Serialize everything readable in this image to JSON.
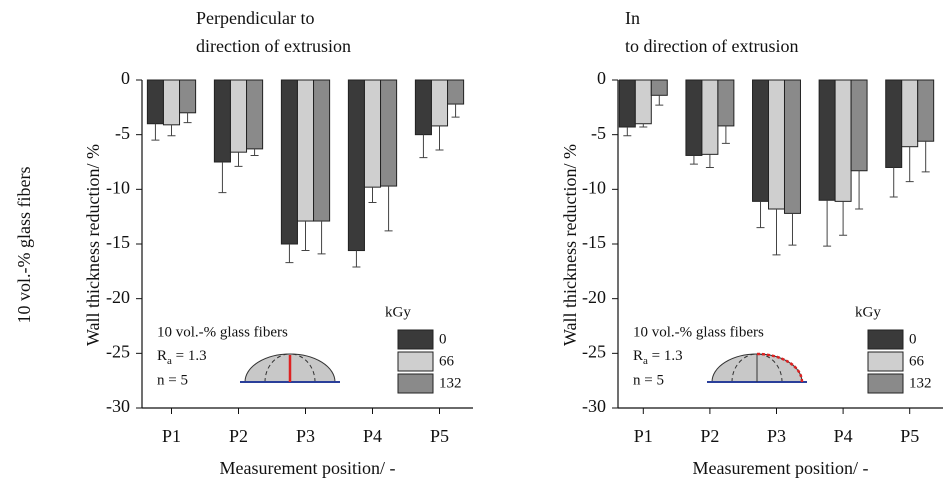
{
  "side_label": "10 vol.-% glass fibers",
  "chart_data": [
    {
      "type": "bar",
      "title": [
        "Perpendicular to",
        "direction of extrusion"
      ],
      "ylabel": "Wall thickness reduction/ %",
      "xlabel": "Measurement position/ -",
      "categories": [
        "P1",
        "P2",
        "P3",
        "P4",
        "P5"
      ],
      "legend_title": "kGy",
      "series": [
        {
          "name": "0",
          "color": "#3a3a3a",
          "values": [
            -4.0,
            -7.5,
            -15.0,
            -15.6,
            -5.0
          ],
          "errors": [
            1.5,
            2.8,
            1.7,
            1.5,
            2.1
          ]
        },
        {
          "name": "66",
          "color": "#cfcfcf",
          "values": [
            -4.1,
            -6.6,
            -12.9,
            -9.8,
            -4.2
          ],
          "errors": [
            1.0,
            1.3,
            2.7,
            1.4,
            2.2
          ]
        },
        {
          "name": "132",
          "color": "#8a8a8a",
          "values": [
            -3.0,
            -6.3,
            -12.9,
            -9.7,
            -2.2
          ],
          "errors": [
            0.9,
            0.6,
            3.0,
            4.1,
            1.2
          ]
        }
      ],
      "annotations": [
        "10 vol.-% glass fibers",
        {
          "base": "R",
          "sub": "a",
          "rest": " = 1.3"
        },
        "n = 5"
      ],
      "ylim": [
        -30,
        0
      ],
      "yticks": [
        0,
        -5,
        -10,
        -15,
        -20,
        -25,
        -30
      ]
    },
    {
      "type": "bar",
      "title": [
        "In",
        "to direction of extrusion"
      ],
      "ylabel": "Wall thickness reduction/ %",
      "xlabel": "Measurement position/ -",
      "categories": [
        "P1",
        "P2",
        "P3",
        "P4",
        "P5"
      ],
      "legend_title": "kGy",
      "series": [
        {
          "name": "0",
          "color": "#3a3a3a",
          "values": [
            -4.3,
            -6.9,
            -11.1,
            -11.0,
            -8.0
          ],
          "errors": [
            0.8,
            0.8,
            2.4,
            4.2,
            2.7
          ]
        },
        {
          "name": "66",
          "color": "#cfcfcf",
          "values": [
            -4.0,
            -6.8,
            -11.8,
            -11.1,
            -6.1
          ],
          "errors": [
            0.3,
            1.2,
            4.2,
            3.1,
            3.2
          ]
        },
        {
          "name": "132",
          "color": "#8a8a8a",
          "values": [
            -1.4,
            -4.2,
            -12.2,
            -8.3,
            -5.6
          ],
          "errors": [
            0.9,
            1.6,
            2.9,
            3.5,
            2.8
          ]
        }
      ],
      "annotations": [
        "10 vol.-% glass fibers",
        {
          "base": "R",
          "sub": "a",
          "rest": " = 1.3"
        },
        "n = 5"
      ],
      "ylim": [
        -30,
        0
      ],
      "yticks": [
        0,
        -5,
        -10,
        -15,
        -20,
        -25,
        -30
      ]
    }
  ]
}
